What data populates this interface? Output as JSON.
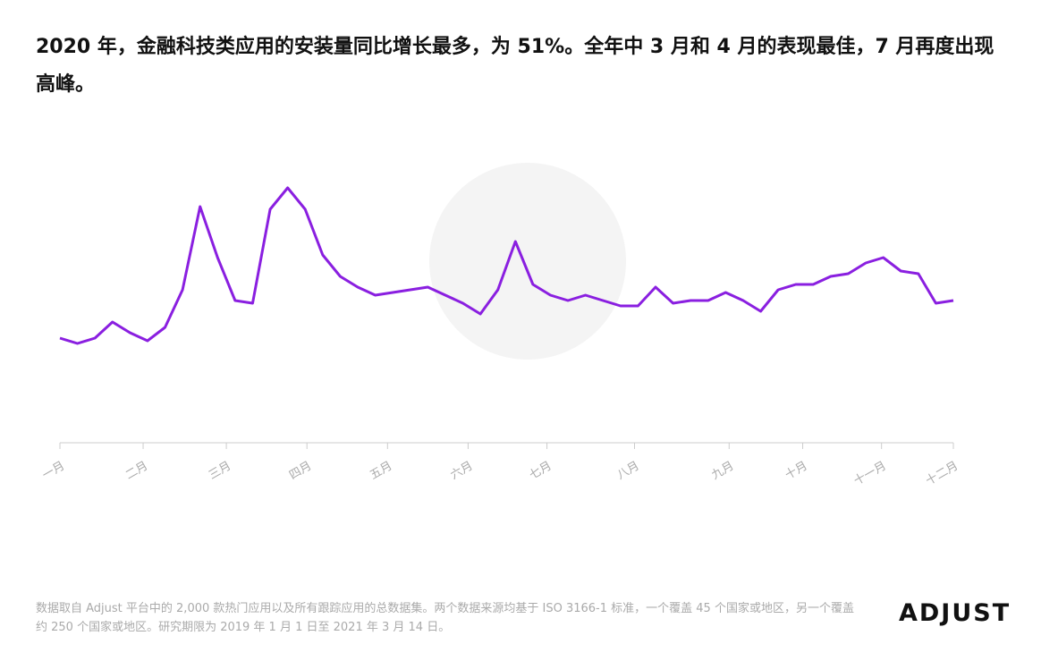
{
  "chart_data": {
    "type": "line",
    "title": "2020 年，金融科技类应用的安装量同比增长最多，为 51%。全年中 3 月和 4 月的表现最佳，7 月再度出现高峰。",
    "x": [
      0,
      1,
      2,
      3,
      4,
      5,
      6,
      7,
      8,
      9,
      10,
      11,
      12,
      13,
      14,
      15,
      16,
      17,
      18,
      19,
      20,
      21,
      22,
      23,
      24,
      25,
      26,
      27,
      28,
      29,
      30,
      31,
      32,
      33,
      34,
      35,
      36,
      37,
      38,
      39,
      40,
      41,
      42,
      43,
      44,
      45,
      46,
      47,
      48,
      49,
      50,
      51
    ],
    "series": [
      {
        "color": "#8a1fe0",
        "values": [
          39,
          37,
          39,
          45,
          41,
          38,
          43,
          57,
          88,
          69,
          53,
          52,
          87,
          95,
          87,
          70,
          62,
          58,
          55,
          56,
          57,
          58,
          55,
          52,
          48,
          57,
          75,
          59,
          55,
          53,
          55,
          53,
          51,
          51,
          58,
          52,
          53,
          53,
          56,
          53,
          49,
          57,
          59,
          59,
          62,
          63,
          67,
          69,
          64,
          63,
          52,
          53
        ]
      }
    ],
    "xlim": [
      0,
      51
    ],
    "ylim": [
      0,
      100
    ],
    "xticks": [
      {
        "value": 0,
        "label": "一月"
      },
      {
        "value": 4.75,
        "label": "二月"
      },
      {
        "value": 9.5,
        "label": "三月"
      },
      {
        "value": 14.1,
        "label": "四月"
      },
      {
        "value": 18.7,
        "label": "五月"
      },
      {
        "value": 23.3,
        "label": "六月"
      },
      {
        "value": 27.8,
        "label": "七月"
      },
      {
        "value": 32.8,
        "label": "八月"
      },
      {
        "value": 38.2,
        "label": "九月"
      },
      {
        "value": 42.4,
        "label": "十月"
      },
      {
        "value": 46.9,
        "label": "十一月"
      },
      {
        "value": 51,
        "label": "十二月"
      }
    ],
    "footnote": "数据取自 Adjust 平台中的 2,000 款热门应用以及所有跟踪应用的总数据集。两个数据来源均基于 ISO 3166-1 标准，一个覆盖 45 个国家或地区，另一个覆盖约 250 个国家或地区。研究期限为 2019 年 1 月 1 日至 2021 年 3 月 14 日。",
    "logo": "ADJUST"
  }
}
